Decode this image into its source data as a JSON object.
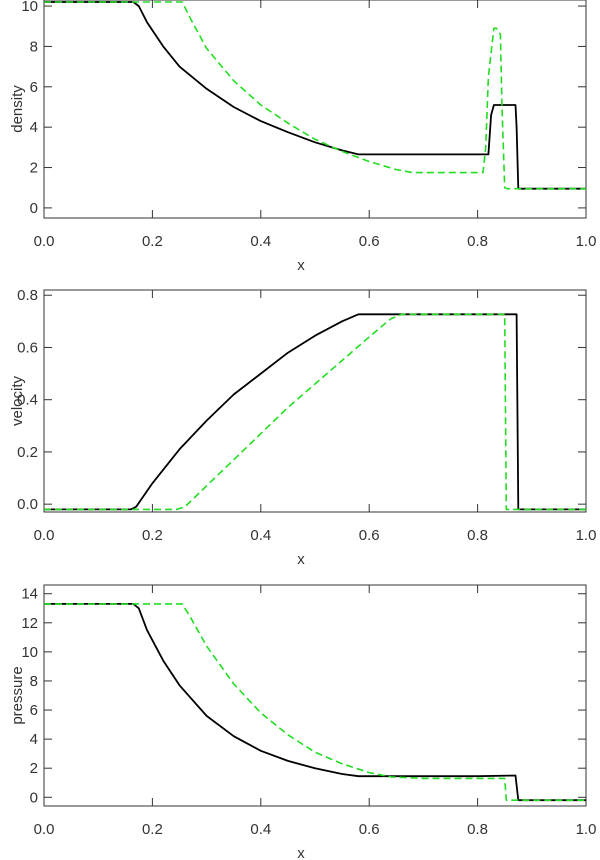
{
  "chart_data": [
    {
      "type": "line",
      "xlabel": "x",
      "ylabel": "density",
      "xlim": [
        0,
        1
      ],
      "ylim": [
        -0.5,
        10.3
      ],
      "xticks": [
        "0.0",
        "0.2",
        "0.4",
        "0.6",
        "0.8",
        "1.0"
      ],
      "yticks": [
        "0",
        "2",
        "4",
        "6",
        "8",
        "10"
      ],
      "series": [
        {
          "style": "solid",
          "color": "#000000",
          "x": [
            0,
            0.165,
            0.175,
            0.19,
            0.22,
            0.25,
            0.3,
            0.35,
            0.4,
            0.45,
            0.5,
            0.55,
            0.58,
            0.6,
            0.7,
            0.8,
            0.82,
            0.825,
            0.83,
            0.85,
            0.87,
            0.872,
            0.875,
            0.9,
            1.0
          ],
          "y": [
            10.2,
            10.2,
            10.0,
            9.2,
            8.0,
            7.0,
            5.9,
            5.0,
            4.3,
            3.75,
            3.25,
            2.85,
            2.65,
            2.65,
            2.65,
            2.65,
            2.65,
            4.6,
            5.1,
            5.1,
            5.1,
            4.0,
            0.95,
            0.95,
            0.95
          ]
        },
        {
          "style": "dashed",
          "color": "#22dd22",
          "x": [
            0,
            0.255,
            0.27,
            0.3,
            0.35,
            0.4,
            0.45,
            0.5,
            0.55,
            0.6,
            0.65,
            0.68,
            0.75,
            0.81,
            0.815,
            0.82,
            0.83,
            0.835,
            0.842,
            0.845,
            0.85,
            0.855,
            0.9,
            1.0
          ],
          "y": [
            10.2,
            10.2,
            9.4,
            7.9,
            6.3,
            5.1,
            4.2,
            3.4,
            2.8,
            2.3,
            1.9,
            1.75,
            1.75,
            1.75,
            3.0,
            6.5,
            8.9,
            8.9,
            8.6,
            5.0,
            1.0,
            0.95,
            0.95,
            0.95
          ]
        }
      ]
    },
    {
      "type": "line",
      "xlabel": "x",
      "ylabel": "velocity",
      "xlim": [
        0,
        1
      ],
      "ylim": [
        -0.03,
        0.82
      ],
      "xticks": [
        "0.0",
        "0.2",
        "0.4",
        "0.6",
        "0.8",
        "1.0"
      ],
      "yticks": [
        "0.0",
        "0.2",
        "0.4",
        "0.6",
        "0.8"
      ],
      "series": [
        {
          "style": "solid",
          "color": "#000000",
          "x": [
            0,
            0.16,
            0.17,
            0.18,
            0.2,
            0.25,
            0.3,
            0.35,
            0.4,
            0.45,
            0.5,
            0.55,
            0.58,
            0.7,
            0.8,
            0.872,
            0.875,
            0.9,
            1.0
          ],
          "y": [
            -0.02,
            -0.02,
            -0.01,
            0.02,
            0.08,
            0.21,
            0.32,
            0.42,
            0.5,
            0.58,
            0.645,
            0.7,
            0.727,
            0.727,
            0.727,
            0.727,
            -0.02,
            -0.02,
            -0.02
          ],
          "note": ""
        },
        {
          "style": "dashed",
          "color": "#22dd22",
          "x": [
            0,
            0.245,
            0.26,
            0.28,
            0.3,
            0.35,
            0.4,
            0.45,
            0.5,
            0.55,
            0.6,
            0.64,
            0.66,
            0.75,
            0.85,
            0.853,
            0.9,
            1.0
          ],
          "y": [
            -0.02,
            -0.02,
            -0.01,
            0.03,
            0.07,
            0.17,
            0.27,
            0.37,
            0.46,
            0.55,
            0.64,
            0.71,
            0.727,
            0.727,
            0.727,
            -0.02,
            -0.02,
            -0.02
          ]
        }
      ]
    },
    {
      "type": "line",
      "xlabel": "x",
      "ylabel": "pressure",
      "xlim": [
        0,
        1
      ],
      "ylim": [
        -0.6,
        14.6
      ],
      "xticks": [
        "0.0",
        "0.2",
        "0.4",
        "0.6",
        "0.8",
        "1.0"
      ],
      "yticks": [
        "0",
        "2",
        "4",
        "6",
        "8",
        "10",
        "12",
        "14"
      ],
      "series": [
        {
          "style": "solid",
          "color": "#000000",
          "x": [
            0,
            0.165,
            0.175,
            0.19,
            0.22,
            0.25,
            0.3,
            0.35,
            0.4,
            0.45,
            0.5,
            0.55,
            0.58,
            0.7,
            0.8,
            0.87,
            0.875,
            0.9,
            1.0
          ],
          "y": [
            13.3,
            13.3,
            13.0,
            11.5,
            9.4,
            7.7,
            5.6,
            4.2,
            3.2,
            2.5,
            2.0,
            1.6,
            1.45,
            1.45,
            1.45,
            1.5,
            -0.2,
            -0.2,
            -0.2
          ]
        },
        {
          "style": "dashed",
          "color": "#22dd22",
          "x": [
            0,
            0.255,
            0.27,
            0.3,
            0.35,
            0.4,
            0.45,
            0.5,
            0.55,
            0.6,
            0.64,
            0.7,
            0.8,
            0.85,
            0.853,
            0.9,
            1.0
          ],
          "y": [
            13.3,
            13.3,
            12.4,
            10.4,
            7.8,
            5.8,
            4.3,
            3.1,
            2.3,
            1.7,
            1.4,
            1.3,
            1.3,
            1.3,
            -0.2,
            -0.2,
            -0.2
          ]
        }
      ]
    }
  ]
}
